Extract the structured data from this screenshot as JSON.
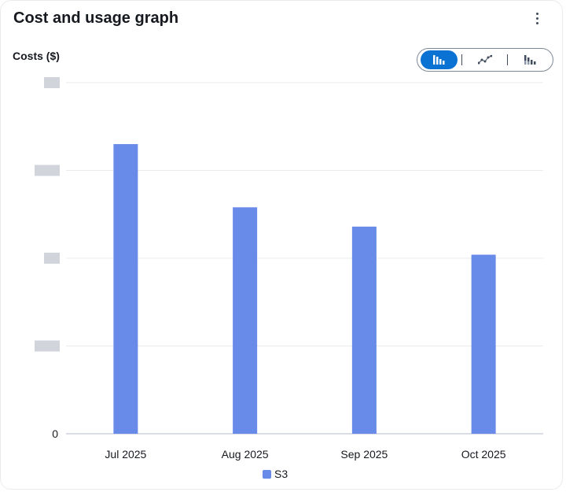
{
  "header": {
    "title": "Cost and usage graph",
    "menu_icon": "more-vertical-icon"
  },
  "toggle": {
    "options": [
      {
        "icon": "bar-chart-icon",
        "selected": true
      },
      {
        "icon": "line-chart-icon",
        "selected": false
      },
      {
        "icon": "stacked-bar-chart-icon",
        "selected": false
      }
    ]
  },
  "colors": {
    "series": "#688ae8",
    "accent": "#0972d3",
    "grid": "#e9ebed",
    "redacted": "#d1d5db"
  },
  "chart_data": {
    "type": "bar",
    "title": "Cost and usage graph",
    "ylabel": "Costs ($)",
    "xlabel": "",
    "categories": [
      "Jul 2025",
      "Aug 2025",
      "Sep 2025",
      "Oct 2025"
    ],
    "series": [
      {
        "name": "S3",
        "values": [
          3.3,
          2.58,
          2.36,
          2.04
        ]
      }
    ],
    "ylim": [
      0,
      4
    ],
    "yticks": [
      0,
      1,
      2,
      3,
      4
    ],
    "ytick_labels": [
      "0",
      "",
      "",
      "",
      ""
    ],
    "grid": true,
    "legend": "bottom"
  }
}
